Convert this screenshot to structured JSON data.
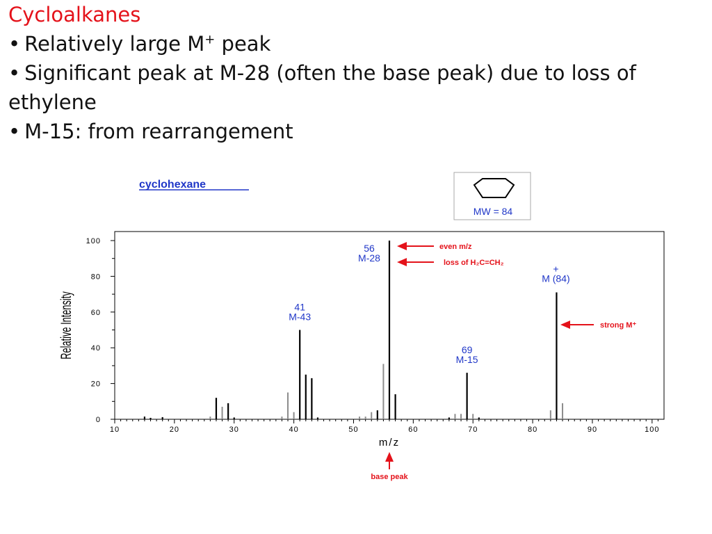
{
  "slide": {
    "title": "Cycloalkanes",
    "bullets": [
      {
        "bullet": "•",
        "text": "Relatively large M",
        "sup": "+",
        "after": " peak"
      },
      {
        "bullet": "•",
        "text": "Significant peak at M-28 (often the base peak) due to loss of",
        "sup": "",
        "after": ""
      },
      {
        "bullet": "",
        "text": "ethylene",
        "sup": "",
        "after": ""
      },
      {
        "bullet": "•",
        "text": "M-15: from rearrangement",
        "sup": "",
        "after": ""
      }
    ]
  },
  "colors": {
    "title": "#e4121a",
    "label_blue": "#2037c8",
    "annotation_red": "#e4121a",
    "bar_major": "#000000",
    "bar_minor": "#8c8c8c"
  },
  "chart_data": {
    "type": "bar",
    "compound_name": "cyclohexane",
    "molecule_label": "MW = 84",
    "xlabel": "m/z",
    "ylabel": "Relative Intensity",
    "xlim": [
      10,
      102
    ],
    "ylim": [
      0,
      100
    ],
    "x_ticks": [
      "10",
      "20",
      "30",
      "40",
      "50",
      "60",
      "70",
      "80",
      "90",
      "100"
    ],
    "y_ticks": [
      "0",
      "20",
      "40",
      "60",
      "80",
      "100"
    ],
    "peaks": [
      {
        "mz": 15,
        "intensity": 1.5,
        "shade": "major"
      },
      {
        "mz": 16,
        "intensity": 0.8,
        "shade": "major"
      },
      {
        "mz": 18,
        "intensity": 1.2,
        "shade": "major"
      },
      {
        "mz": 26,
        "intensity": 1.5,
        "shade": "minor"
      },
      {
        "mz": 27,
        "intensity": 12,
        "shade": "major"
      },
      {
        "mz": 28,
        "intensity": 7,
        "shade": "minor"
      },
      {
        "mz": 29,
        "intensity": 9,
        "shade": "major"
      },
      {
        "mz": 30,
        "intensity": 1,
        "shade": "major"
      },
      {
        "mz": 38,
        "intensity": 1.5,
        "shade": "minor"
      },
      {
        "mz": 39,
        "intensity": 15,
        "shade": "minor"
      },
      {
        "mz": 40,
        "intensity": 4,
        "shade": "minor"
      },
      {
        "mz": 41,
        "intensity": 50,
        "shade": "major"
      },
      {
        "mz": 42,
        "intensity": 25,
        "shade": "major"
      },
      {
        "mz": 43,
        "intensity": 23,
        "shade": "major"
      },
      {
        "mz": 44,
        "intensity": 1,
        "shade": "major"
      },
      {
        "mz": 51,
        "intensity": 1.5,
        "shade": "minor"
      },
      {
        "mz": 52,
        "intensity": 1.5,
        "shade": "minor"
      },
      {
        "mz": 53,
        "intensity": 4,
        "shade": "minor"
      },
      {
        "mz": 54,
        "intensity": 5,
        "shade": "major"
      },
      {
        "mz": 55,
        "intensity": 31,
        "shade": "minor"
      },
      {
        "mz": 56,
        "intensity": 100,
        "shade": "major"
      },
      {
        "mz": 57,
        "intensity": 14,
        "shade": "major"
      },
      {
        "mz": 66,
        "intensity": 1,
        "shade": "major"
      },
      {
        "mz": 67,
        "intensity": 3,
        "shade": "minor"
      },
      {
        "mz": 68,
        "intensity": 3,
        "shade": "minor"
      },
      {
        "mz": 69,
        "intensity": 26,
        "shade": "major"
      },
      {
        "mz": 70,
        "intensity": 3,
        "shade": "minor"
      },
      {
        "mz": 71,
        "intensity": 1,
        "shade": "major"
      },
      {
        "mz": 83,
        "intensity": 5,
        "shade": "minor"
      },
      {
        "mz": 84,
        "intensity": 71,
        "shade": "major"
      },
      {
        "mz": 85,
        "intensity": 9,
        "shade": "minor"
      }
    ],
    "peak_labels": [
      {
        "mz": 41,
        "lines": [
          "41",
          "M-43"
        ]
      },
      {
        "mz": 56,
        "lines": [
          "56",
          "M-28"
        ]
      },
      {
        "mz": 69,
        "lines": [
          "69",
          "M-15"
        ]
      },
      {
        "mz": 84,
        "lines": [
          "+",
          "M (84)"
        ]
      }
    ],
    "annotations": [
      {
        "text": "even m/z",
        "target": "56"
      },
      {
        "text": "loss of H₂C=CH₂",
        "target": "56"
      },
      {
        "text": "strong M⁺",
        "target": "84"
      },
      {
        "text": "base peak",
        "target": "56"
      }
    ]
  }
}
